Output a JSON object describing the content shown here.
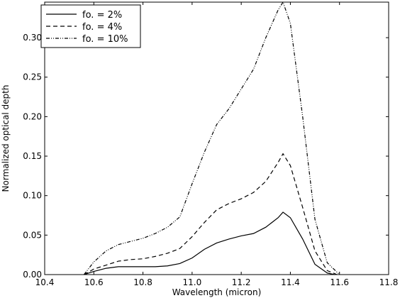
{
  "chart_data": {
    "type": "line",
    "title": "",
    "xlabel": "Wavelength (micron)",
    "ylabel": "Normalized optical depth",
    "xlim": [
      10.4,
      11.8
    ],
    "ylim": [
      0.0,
      0.345
    ],
    "xticks": [
      10.4,
      10.6,
      10.8,
      11.0,
      11.2,
      11.4,
      11.6,
      11.8
    ],
    "xtick_labels": [
      "10.4",
      "10.6",
      "10.8",
      "11.0",
      "11.2",
      "11.4",
      "11.6",
      "11.8"
    ],
    "yticks": [
      0.0,
      0.05,
      0.1,
      0.15,
      0.2,
      0.25,
      0.3
    ],
    "ytick_labels": [
      "0.00",
      "0.05",
      "0.10",
      "0.15",
      "0.20",
      "0.25",
      "0.30"
    ],
    "grid": false,
    "legend_position": "top-left",
    "series": [
      {
        "name": "fo. = 2%",
        "dash": "solid",
        "color": "#000000",
        "x": [
          10.56,
          10.6,
          10.65,
          10.7,
          10.75,
          10.8,
          10.85,
          10.9,
          10.95,
          11.0,
          11.05,
          11.1,
          11.15,
          11.2,
          11.25,
          11.3,
          11.35,
          11.37,
          11.4,
          11.45,
          11.5,
          11.55,
          11.58
        ],
        "y": [
          0.0,
          0.004,
          0.008,
          0.01,
          0.01,
          0.01,
          0.01,
          0.011,
          0.014,
          0.021,
          0.032,
          0.04,
          0.045,
          0.049,
          0.052,
          0.06,
          0.072,
          0.079,
          0.072,
          0.045,
          0.013,
          0.002,
          0.0
        ]
      },
      {
        "name": "fo. = 4%",
        "dash": "dashed",
        "color": "#000000",
        "x": [
          10.56,
          10.6,
          10.65,
          10.7,
          10.75,
          10.8,
          10.85,
          10.9,
          10.95,
          11.0,
          11.05,
          11.1,
          11.15,
          11.2,
          11.25,
          11.3,
          11.35,
          11.37,
          11.4,
          11.45,
          11.5,
          11.55,
          11.59
        ],
        "y": [
          0.0,
          0.007,
          0.012,
          0.017,
          0.019,
          0.02,
          0.023,
          0.027,
          0.033,
          0.048,
          0.066,
          0.082,
          0.09,
          0.096,
          0.104,
          0.118,
          0.142,
          0.153,
          0.138,
          0.085,
          0.03,
          0.005,
          0.0
        ]
      },
      {
        "name": "fo. = 10%",
        "dash": "dash-dot-dot",
        "color": "#000000",
        "x": [
          10.56,
          10.6,
          10.65,
          10.7,
          10.75,
          10.8,
          10.85,
          10.9,
          10.95,
          11.0,
          11.05,
          11.1,
          11.15,
          11.2,
          11.25,
          11.3,
          11.35,
          11.37,
          11.4,
          11.45,
          11.5,
          11.55,
          11.6
        ],
        "y": [
          0.0,
          0.016,
          0.03,
          0.038,
          0.042,
          0.046,
          0.052,
          0.06,
          0.073,
          0.115,
          0.155,
          0.19,
          0.21,
          0.235,
          0.26,
          0.3,
          0.335,
          0.345,
          0.318,
          0.2,
          0.07,
          0.015,
          0.0
        ]
      }
    ]
  }
}
